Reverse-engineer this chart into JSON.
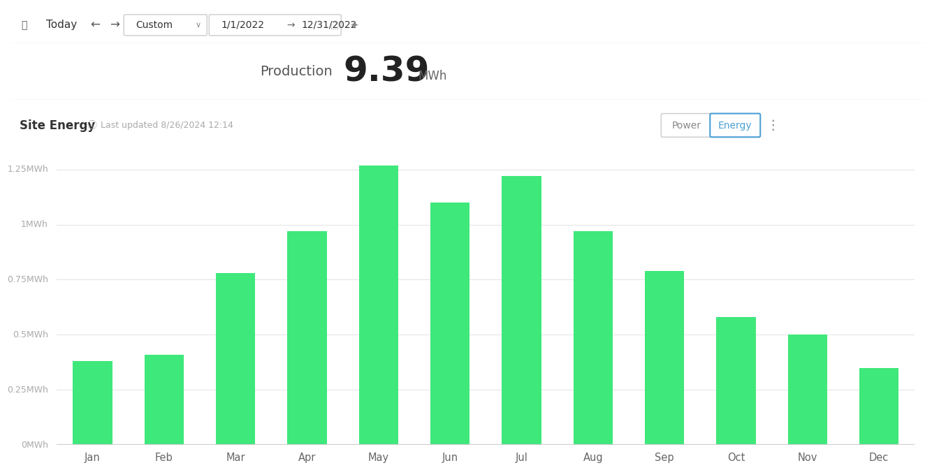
{
  "months": [
    "Jan",
    "Feb",
    "Mar",
    "Apr",
    "May",
    "Jun",
    "Jul",
    "Aug",
    "Sep",
    "Oct",
    "Nov",
    "Dec"
  ],
  "values": [
    0.38,
    0.41,
    0.78,
    0.97,
    1.27,
    1.1,
    1.22,
    0.97,
    0.79,
    0.58,
    0.5,
    0.35
  ],
  "bar_color": "#3EE87A",
  "background_color": "#ffffff",
  "plot_bg_color": "#ffffff",
  "grid_color": "#e5e5e5",
  "title_text": "Production",
  "title_value": "9.39",
  "title_unit": "MWh",
  "site_energy_label": "Site Energy",
  "last_updated": "Last updated 8/26/2024 12:14",
  "yticks": [
    0,
    0.25,
    0.5,
    0.75,
    1.0,
    1.25
  ],
  "ylabels": [
    "0MWh",
    "0.25MWh",
    "0.5MWh",
    "0.75MWh",
    "1MWh",
    "1.25MWh"
  ],
  "ylim": [
    0,
    1.38
  ],
  "ylabel_color": "#aaaaaa",
  "xlabel_color": "#666666",
  "border_color": "#e0e0e0",
  "nav_separator_color": "#e8e8e8",
  "section_bg_color": "#f5f7fa"
}
